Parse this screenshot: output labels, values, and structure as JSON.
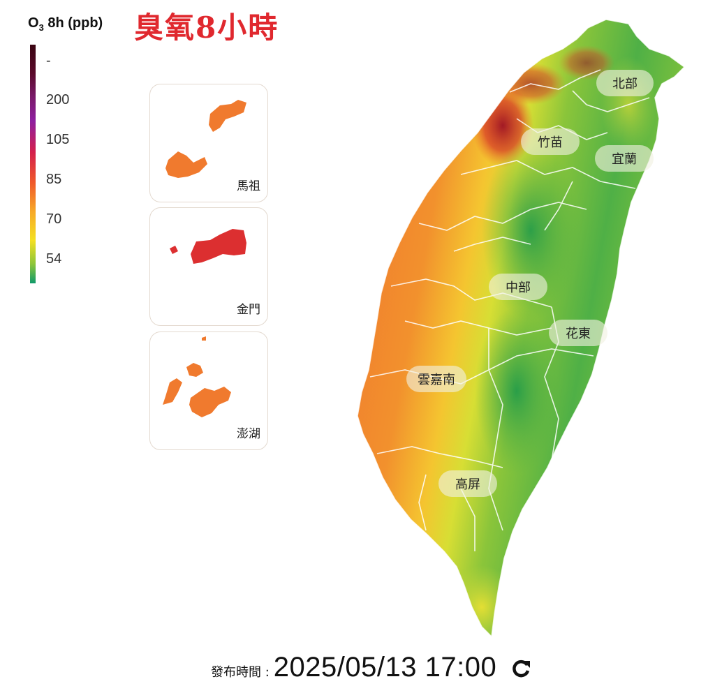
{
  "legend": {
    "title_main": "O",
    "title_sub": "3",
    "title_rest": " 8h (ppb)",
    "ticks": [
      "-",
      "200",
      "105",
      "85",
      "70",
      "54"
    ]
  },
  "map_title": "臭氧8小時",
  "insets": [
    {
      "label": "馬祖",
      "color": "#f07a2e"
    },
    {
      "label": "金門",
      "color": "#dc2f30"
    },
    {
      "label": "澎湖",
      "color": "#f07a2e"
    }
  ],
  "regions": [
    "北部",
    "竹苗",
    "宜蘭",
    "中部",
    "花東",
    "雲嘉南",
    "高屏"
  ],
  "footer": {
    "label": "發布時間 :",
    "datetime": "2025/05/13 17:00"
  },
  "refresh_icon": "refresh-icon"
}
